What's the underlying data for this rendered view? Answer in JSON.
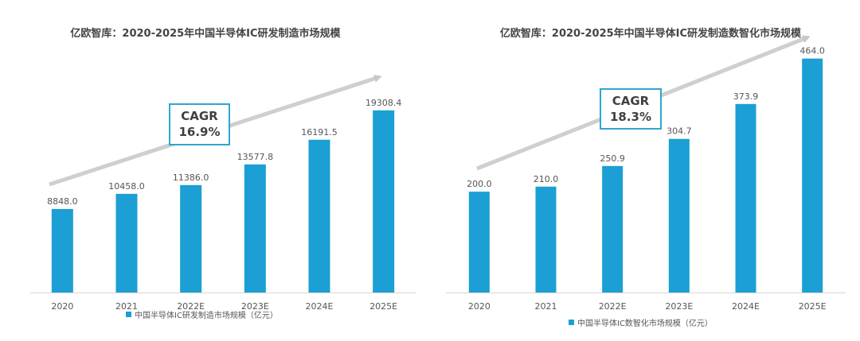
{
  "chart_data": [
    {
      "type": "bar",
      "title": "亿欧智库：2020-2025年中国半导体IC研发制造市场规模",
      "categories": [
        "2020",
        "2021",
        "2022E",
        "2023E",
        "2024E",
        "2025E"
      ],
      "series": [
        {
          "name": "中国半导体IC研发制造市场规模（亿元）",
          "values": [
            8848.0,
            10458.0,
            11386.0,
            13577.8,
            16191.5,
            19308.4
          ]
        }
      ],
      "value_labels": [
        "8848.0",
        "10458.0",
        "11386.0",
        "13577.8",
        "16191.5",
        "19308.4"
      ],
      "ylim": [
        0,
        23000
      ],
      "grid": false,
      "legend_position": "bottom",
      "bar_color": "#1b9fd4",
      "annotation": {
        "line1": "CAGR",
        "line2": "16.9%"
      }
    },
    {
      "type": "bar",
      "title": "亿欧智库：2020-2025年中国半导体IC研发制造数智化市场规模",
      "categories": [
        "2020",
        "2021",
        "2022E",
        "2023E",
        "2024E",
        "2025E"
      ],
      "series": [
        {
          "name": "中国半导体IC数智化市场规模（亿元）",
          "values": [
            200.0,
            210.0,
            250.9,
            304.7,
            373.9,
            464.0
          ]
        }
      ],
      "value_labels": [
        "200.0",
        "210.0",
        "250.9",
        "304.7",
        "373.9",
        "464.0"
      ],
      "ylim": [
        0,
        495
      ],
      "grid": false,
      "legend_position": "bottom",
      "bar_color": "#1b9fd4",
      "annotation": {
        "line1": "CAGR",
        "line2": "18.3%"
      }
    }
  ]
}
